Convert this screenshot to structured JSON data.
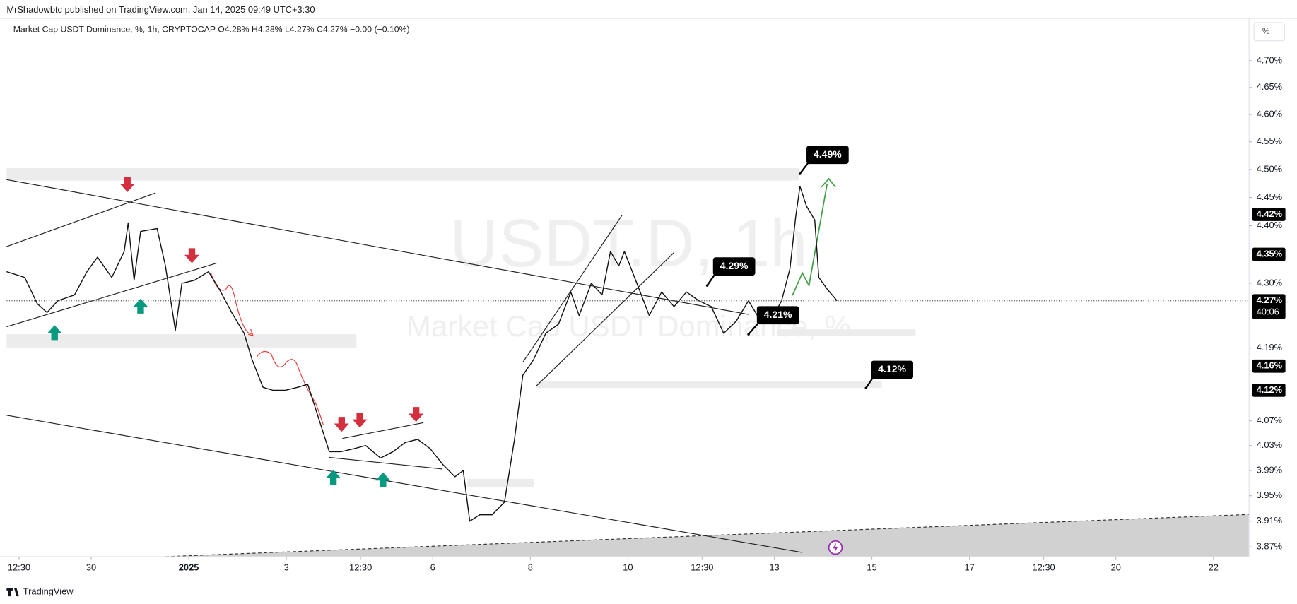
{
  "header": "MrShadowbtc published on TradingView.com, Jan 14, 2025 09:49 UTC+3:30",
  "legend": "Market Cap USDT Dominance, %, 1h, CRYPTOCAP  O4.28%  H4.28%  L4.27%  C4.27%  −0.00 (−0.10%)",
  "scale_button": "%",
  "footer": "TradingView",
  "chart_data": {
    "type": "line",
    "watermark": "USDT.D, 1h",
    "watermark_subtitle": "Market Cap USDT Dominance, %",
    "color": "#111111",
    "log": true,
    "grid": false,
    "x": [
      6.4,
      15.3,
      21.5,
      26.3,
      31.6,
      39.8,
      45.9,
      51.1,
      58.1,
      64.2,
      66.2,
      69.1,
      72.3,
      80.4,
      84.5,
      89.4,
      92.6,
      98.7,
      105.7,
      111.0,
      117.1,
      123.2,
      127.2,
      132.5,
      137.4,
      143.5,
      149.6,
      154.5,
      159.8,
      165.1,
      170.8,
      177.3,
      183.0,
      190.3,
      196.4,
      202.5,
      208.6,
      214.7,
      220.8,
      226.9,
      231.0,
      234.2,
      239.1,
      245.2,
      251.3,
      256.2,
      260.3,
      265.5,
      271.6,
      277.8,
      283.9,
      288.0,
      294.0,
      299.3,
      303.4,
      307.5,
      310.3,
      316.4,
      322.5,
      328.6,
      334.7,
      340.8,
      346.9,
      353.0,
      359.1,
      365.2,
      371.3,
      377.4,
      383.6,
      387.6,
      391.7,
      394.5,
      396.6,
      399.8,
      403.9,
      405.9,
      410.0,
      414.9
    ],
    "values": [
      4.32,
      4.31,
      4.265,
      4.25,
      4.27,
      4.28,
      4.32,
      4.345,
      4.31,
      4.355,
      4.405,
      4.305,
      4.39,
      4.395,
      4.33,
      4.22,
      4.3,
      4.305,
      4.32,
      4.29,
      4.25,
      4.215,
      4.17,
      4.125,
      4.12,
      4.12,
      4.125,
      4.13,
      4.075,
      4.02,
      4.02,
      4.025,
      4.03,
      4.01,
      4.02,
      4.035,
      4.04,
      4.025,
      4.0,
      3.98,
      3.99,
      3.91,
      3.92,
      3.92,
      3.94,
      4.04,
      4.145,
      4.17,
      4.215,
      4.23,
      4.285,
      4.245,
      4.3,
      4.28,
      4.355,
      4.33,
      4.355,
      4.3,
      4.245,
      4.285,
      4.26,
      4.285,
      4.27,
      4.26,
      4.215,
      4.235,
      4.27,
      4.235,
      4.245,
      4.27,
      4.325,
      4.415,
      4.47,
      4.435,
      4.41,
      4.31,
      4.29,
      4.27
    ],
    "xlim": [
      6.4,
      617.5
    ],
    "xticks": [
      {
        "value": 12.5,
        "label": "12:30"
      },
      {
        "value": 48,
        "label": "30"
      },
      {
        "value": 96,
        "label": "2025"
      },
      {
        "value": 144,
        "label": "3"
      },
      {
        "value": 180.5,
        "label": "12:30"
      },
      {
        "value": 216,
        "label": "6"
      },
      {
        "value": 264,
        "label": "8"
      },
      {
        "value": 312,
        "label": "10"
      },
      {
        "value": 348.5,
        "label": "12:30"
      },
      {
        "value": 384,
        "label": "13"
      },
      {
        "value": 432,
        "label": "15"
      },
      {
        "value": 480,
        "label": "17"
      },
      {
        "value": 516.5,
        "label": "12:30"
      },
      {
        "value": 552,
        "label": "20"
      },
      {
        "value": 600,
        "label": "22"
      }
    ],
    "ylim": [
      3.855,
      4.78
    ],
    "yticks": [
      {
        "value": 3.87,
        "label": "3.87%"
      },
      {
        "value": 3.91,
        "label": "3.91%"
      },
      {
        "value": 3.95,
        "label": "3.95%"
      },
      {
        "value": 3.99,
        "label": "3.99%"
      },
      {
        "value": 4.03,
        "label": "4.03%"
      },
      {
        "value": 4.07,
        "label": "4.07%"
      },
      {
        "value": 4.19,
        "label": "4.19%"
      },
      {
        "value": 4.3,
        "label": "4.30%"
      },
      {
        "value": 4.4,
        "label": "4.40%"
      },
      {
        "value": 4.45,
        "label": "4.45%"
      },
      {
        "value": 4.5,
        "label": "4.50%"
      },
      {
        "value": 4.55,
        "label": "4.55%"
      },
      {
        "value": 4.6,
        "label": "4.60%"
      },
      {
        "value": 4.65,
        "label": "4.65%"
      },
      {
        "value": 4.7,
        "label": "4.70%"
      }
    ],
    "price_labels": [
      {
        "value": 4.42,
        "label": "4.42%"
      },
      {
        "value": 4.35,
        "label": "4.35%"
      },
      {
        "value": 4.27,
        "label": "4.27%"
      },
      {
        "value": 4.16,
        "label": "4.16%"
      },
      {
        "value": 4.12,
        "label": "4.12%"
      }
    ],
    "countdown": "40:06",
    "annotations": [
      "4.49%",
      "4.29%",
      "4.21%",
      "4.12%"
    ]
  }
}
